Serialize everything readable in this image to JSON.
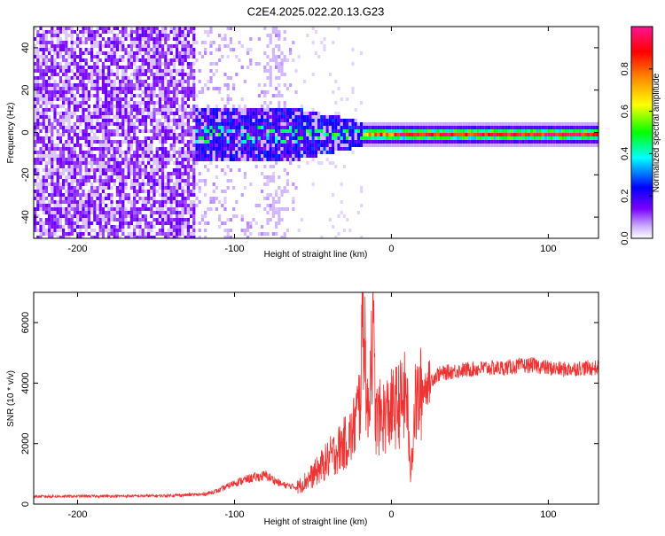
{
  "title": "C2E4.2025.022.20.13.G23",
  "chart_data": [
    {
      "type": "heatmap",
      "xlabel": "Height of straight line (km)",
      "ylabel": "Frequency (Hz)",
      "xlim": [
        -228,
        132
      ],
      "ylim": [
        -50,
        50
      ],
      "xticks": [
        -200,
        -100,
        0,
        100
      ],
      "yticks": [
        -40,
        -20,
        0,
        20,
        40
      ],
      "grid": false,
      "colorbar": {
        "label": "Normalized spectral amplitude",
        "range": [
          0.0,
          1.0
        ],
        "ticks": [
          0.0,
          0.2,
          0.4,
          0.6,
          0.8
        ],
        "tick_labels": [
          "0.0",
          "0.2",
          "0.4",
          "0.6",
          "0.8"
        ],
        "colormap": [
          "#ffffff",
          "#6a00ff",
          "#0000ff",
          "#00ffff",
          "#00ff00",
          "#ffff00",
          "#ff8000",
          "#ff0000",
          "#ff00aa"
        ]
      },
      "description_regions": [
        {
          "x_range": [
            -228,
            -125
          ],
          "freq_range": [
            -50,
            50
          ],
          "amplitude": 0.08
        },
        {
          "x_range": [
            -125,
            -60
          ],
          "freq_range": [
            -50,
            50
          ],
          "amplitude": 0.02
        },
        {
          "x_range": [
            -125,
            -20
          ],
          "freq_range": [
            -12,
            12
          ],
          "amplitude": 0.25
        },
        {
          "x_range": [
            -20,
            132
          ],
          "freq_range": [
            -3,
            3
          ],
          "amplitude": 0.45
        },
        {
          "x_range": [
            0,
            132
          ],
          "freq_range": [
            -0.8,
            0.8
          ],
          "amplitude": 0.85
        }
      ]
    },
    {
      "type": "line",
      "xlabel": "Height of straight line (km)",
      "ylabel": "SNR (10 * v/v)",
      "xlim": [
        -228,
        132
      ],
      "ylim": [
        0,
        7000
      ],
      "xticks": [
        -200,
        -100,
        0,
        100
      ],
      "yticks": [
        0,
        2000,
        4000,
        6000
      ],
      "grid": false,
      "series_color": "#ee3333",
      "series": [
        {
          "x": [
            -228,
            -200,
            -150,
            -120,
            -110,
            -100,
            -90,
            -80,
            -70,
            -60,
            -50,
            -40,
            -30,
            -25,
            -20,
            -18,
            -15,
            -12,
            -10,
            -5,
            0,
            5,
            10,
            12,
            15,
            20,
            25,
            30,
            40,
            50,
            60,
            70,
            80,
            90,
            100,
            110,
            120,
            132
          ],
          "y": [
            250,
            260,
            270,
            320,
            450,
            700,
            850,
            950,
            650,
            550,
            950,
            1500,
            2000,
            2300,
            3400,
            6900,
            2600,
            6200,
            2800,
            2900,
            3100,
            3300,
            3600,
            900,
            3200,
            3800,
            4100,
            4300,
            4400,
            4450,
            4500,
            4500,
            4550,
            4600,
            4500,
            4450,
            4500,
            4500
          ]
        }
      ]
    }
  ],
  "colors": {
    "line": "#ee3333",
    "axis": "#000000",
    "background": "#ffffff"
  }
}
